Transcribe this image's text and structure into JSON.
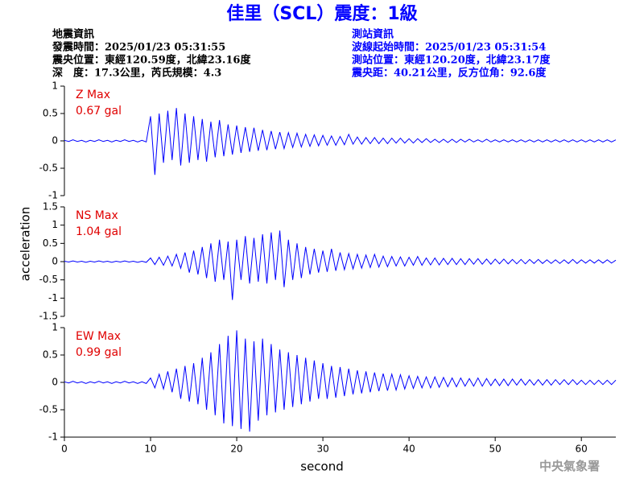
{
  "header": {
    "title": "佳里（SCL）震度：1級",
    "left": [
      "地震資訊",
      "發震時間：2025/01/23 05:31:55",
      "震央位置：東經120.59度，北緯23.16度",
      "深　度：17.3公里，芮氏規模：4.3"
    ],
    "right": [
      "測站資訊",
      "波線起始時間：2025/01/23 05:31:54",
      "測站位置：東經120.20度，北緯23.17度",
      "震央距：40.21公里，反方位角：92.6度"
    ],
    "footer": "中央氣象署"
  },
  "chart_data": {
    "type": "line",
    "xlabel": "second",
    "ylabel": "acceleration",
    "xlim": [
      0,
      64
    ],
    "xticks": [
      0,
      10,
      20,
      30,
      40,
      50,
      60
    ],
    "x": [
      0,
      0.5,
      1,
      1.5,
      2,
      2.5,
      3,
      3.5,
      4,
      4.5,
      5,
      5.5,
      6,
      6.5,
      7,
      7.5,
      8,
      8.5,
      9,
      9.5,
      10,
      10.5,
      11,
      11.5,
      12,
      12.5,
      13,
      13.5,
      14,
      14.5,
      15,
      15.5,
      16,
      16.5,
      17,
      17.5,
      18,
      18.5,
      19,
      19.5,
      20,
      20.5,
      21,
      21.5,
      22,
      22.5,
      23,
      23.5,
      24,
      24.5,
      25,
      25.5,
      26,
      26.5,
      27,
      27.5,
      28,
      28.5,
      29,
      29.5,
      30,
      30.5,
      31,
      31.5,
      32,
      32.5,
      33,
      33.5,
      34,
      34.5,
      35,
      35.5,
      36,
      36.5,
      37,
      37.5,
      38,
      38.5,
      39,
      39.5,
      40,
      40.5,
      41,
      41.5,
      42,
      42.5,
      43,
      43.5,
      44,
      44.5,
      45,
      45.5,
      46,
      46.5,
      47,
      47.5,
      48,
      48.5,
      49,
      49.5,
      50,
      50.5,
      51,
      51.5,
      52,
      52.5,
      53,
      53.5,
      54,
      54.5,
      55,
      55.5,
      56,
      56.5,
      57,
      57.5,
      58,
      58.5,
      59,
      59.5,
      60,
      60.5,
      61,
      61.5,
      62,
      62.5,
      63,
      63.5,
      64
    ],
    "series": [
      {
        "name": "Z Max",
        "max": "0.67 gal",
        "color": "#0000ff",
        "ylim": [
          -1,
          1
        ],
        "yticks": [
          -1,
          -0.5,
          0,
          0.5,
          1
        ],
        "values": [
          0.01,
          -0.01,
          0.02,
          -0.01,
          0.01,
          -0.02,
          0.01,
          -0.01,
          0.02,
          -0.01,
          0.01,
          -0.02,
          0.01,
          -0.01,
          0.02,
          -0.01,
          0.01,
          -0.02,
          0.01,
          -0.02,
          0.45,
          -0.62,
          0.5,
          -0.4,
          0.55,
          -0.35,
          0.6,
          -0.45,
          0.5,
          -0.4,
          0.45,
          -0.35,
          0.4,
          -0.38,
          0.35,
          -0.3,
          0.38,
          -0.28,
          0.3,
          -0.25,
          0.28,
          -0.22,
          0.25,
          -0.2,
          0.24,
          -0.18,
          0.2,
          -0.17,
          0.18,
          -0.15,
          0.16,
          -0.14,
          0.15,
          -0.12,
          0.14,
          -0.11,
          0.12,
          -0.1,
          0.11,
          -0.09,
          0.1,
          -0.08,
          0.09,
          -0.08,
          0.08,
          -0.07,
          0.12,
          -0.06,
          0.07,
          -0.06,
          0.06,
          -0.05,
          0.06,
          -0.05,
          0.05,
          -0.05,
          0.05,
          -0.04,
          0.05,
          -0.04,
          0.04,
          -0.04,
          0.04,
          -0.03,
          0.04,
          -0.03,
          0.03,
          -0.03,
          0.03,
          -0.03,
          0.03,
          -0.03,
          0.03,
          -0.02,
          0.03,
          -0.02,
          0.02,
          -0.02,
          0.03,
          -0.02,
          0.02,
          -0.02,
          0.02,
          -0.02,
          0.02,
          -0.02,
          0.02,
          -0.02,
          0.02,
          -0.02,
          0.02,
          -0.02,
          0.02,
          -0.02,
          0.02,
          -0.02,
          0.02,
          -0.02,
          0.02,
          -0.02,
          0.02,
          -0.02,
          0.02,
          -0.02,
          0.02,
          -0.02,
          0.02,
          -0.02,
          0.02
        ]
      },
      {
        "name": "NS Max",
        "max": "1.04 gal",
        "color": "#0000ff",
        "ylim": [
          -1.5,
          1.5
        ],
        "yticks": [
          -1.5,
          -1,
          -0.5,
          0,
          0.5,
          1,
          1.5
        ],
        "values": [
          0.01,
          -0.01,
          0.02,
          -0.01,
          0.01,
          -0.02,
          0.01,
          -0.01,
          0.02,
          -0.01,
          0.01,
          -0.02,
          0.01,
          -0.01,
          0.02,
          -0.01,
          0.01,
          -0.02,
          0.01,
          -0.02,
          0.1,
          -0.08,
          0.12,
          -0.1,
          0.15,
          -0.12,
          0.2,
          -0.18,
          0.25,
          -0.3,
          0.3,
          -0.35,
          0.4,
          -0.45,
          0.5,
          -0.55,
          0.6,
          -0.5,
          0.55,
          -1.05,
          0.6,
          -0.5,
          0.7,
          -0.6,
          0.65,
          -0.55,
          0.75,
          -0.6,
          0.8,
          -0.5,
          0.85,
          -0.7,
          0.6,
          -0.5,
          0.5,
          -0.45,
          0.4,
          -0.35,
          0.35,
          -0.3,
          0.3,
          -0.28,
          0.35,
          -0.25,
          0.25,
          -0.22,
          0.22,
          -0.2,
          0.2,
          -0.18,
          0.18,
          -0.16,
          0.2,
          -0.15,
          0.15,
          -0.14,
          0.14,
          -0.12,
          0.13,
          -0.12,
          0.12,
          -0.1,
          0.14,
          -0.1,
          0.1,
          -0.09,
          0.1,
          -0.09,
          0.09,
          -0.08,
          0.09,
          -0.08,
          0.08,
          -0.08,
          0.08,
          -0.07,
          0.08,
          -0.07,
          0.07,
          -0.07,
          0.07,
          -0.06,
          0.07,
          -0.06,
          0.06,
          -0.06,
          0.06,
          -0.06,
          0.06,
          -0.05,
          0.06,
          -0.05,
          0.05,
          -0.05,
          0.05,
          -0.05,
          0.05,
          -0.05,
          0.06,
          -0.05,
          0.05,
          -0.04,
          0.05,
          -0.04,
          0.05,
          -0.04,
          0.05,
          -0.04,
          0.04
        ]
      },
      {
        "name": "EW Max",
        "max": "0.99 gal",
        "color": "#0000ff",
        "ylim": [
          -1,
          1
        ],
        "yticks": [
          -1,
          -0.5,
          0,
          0.5,
          1
        ],
        "values": [
          0.01,
          -0.01,
          0.02,
          -0.01,
          0.01,
          -0.02,
          0.01,
          -0.01,
          0.02,
          -0.01,
          0.01,
          -0.02,
          0.01,
          -0.01,
          0.02,
          -0.01,
          0.01,
          -0.02,
          0.01,
          -0.02,
          0.08,
          -0.1,
          0.15,
          -0.12,
          0.2,
          -0.18,
          0.25,
          -0.3,
          0.3,
          -0.35,
          0.35,
          -0.4,
          0.45,
          -0.5,
          0.55,
          -0.6,
          0.7,
          -0.75,
          0.85,
          -0.8,
          0.95,
          -0.85,
          0.8,
          -0.9,
          0.75,
          -0.7,
          0.8,
          -0.6,
          0.7,
          -0.55,
          0.6,
          -0.5,
          0.55,
          -0.45,
          0.5,
          -0.4,
          0.45,
          -0.35,
          0.4,
          -0.3,
          0.35,
          -0.3,
          0.3,
          -0.28,
          0.28,
          -0.25,
          0.25,
          -0.22,
          0.22,
          -0.2,
          0.2,
          -0.18,
          0.18,
          -0.16,
          0.16,
          -0.15,
          0.15,
          -0.14,
          0.14,
          -0.12,
          0.12,
          -0.11,
          0.11,
          -0.1,
          0.1,
          -0.1,
          0.1,
          -0.09,
          0.09,
          -0.08,
          0.08,
          -0.08,
          0.08,
          -0.07,
          0.07,
          -0.07,
          0.08,
          -0.07,
          0.07,
          -0.06,
          0.06,
          -0.06,
          0.06,
          -0.06,
          0.06,
          -0.05,
          0.06,
          -0.05,
          0.05,
          -0.05,
          0.05,
          -0.05,
          0.05,
          -0.05,
          0.05,
          -0.04,
          0.05,
          -0.04,
          0.05,
          -0.04,
          0.04,
          -0.04,
          0.04,
          -0.04,
          0.04,
          -0.04,
          0.04,
          -0.04,
          0.04
        ]
      }
    ]
  }
}
